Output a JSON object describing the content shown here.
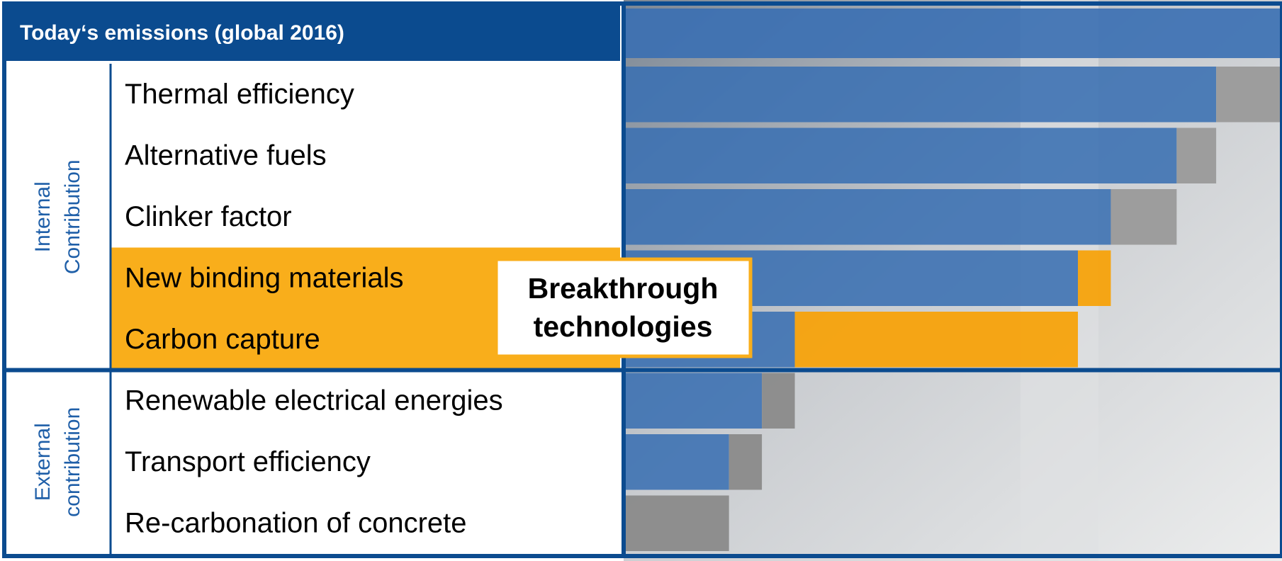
{
  "chart_data": {
    "type": "waterfall",
    "categories": [
      "Today‘s emissions (global 2016)",
      "Thermal efficiency",
      "Alternative fuels",
      "Clinker factor",
      "New binding materials",
      "Carbon capture",
      "Renewable electrical energies",
      "Transport efficiency",
      "Re-carbonation of concrete"
    ],
    "values": [
      100,
      -10,
      -6,
      -10,
      -5,
      -43,
      -5,
      -5,
      -16
    ],
    "colors": [
      "#3a6fb2",
      "#9a9a9a",
      "#9a9a9a",
      "#9a9a9a",
      "#f7a20b",
      "#f7a20b",
      "#8a8a8a",
      "#8a8a8a",
      "#8a8a8a"
    ],
    "color": "#3a6fb2",
    "xlim": [
      0,
      100
    ],
    "highlight": [
      false,
      false,
      false,
      false,
      true,
      true,
      false,
      false,
      false
    ],
    "highlight_color": "#f9ae1b",
    "groups": [
      {
        "name": [
          "Internal",
          "Contribution"
        ],
        "size": 5
      },
      {
        "name": [
          "External",
          "contribution"
        ],
        "size": 3
      }
    ],
    "annotation": [
      "Breakthrough",
      "technologies"
    ]
  }
}
